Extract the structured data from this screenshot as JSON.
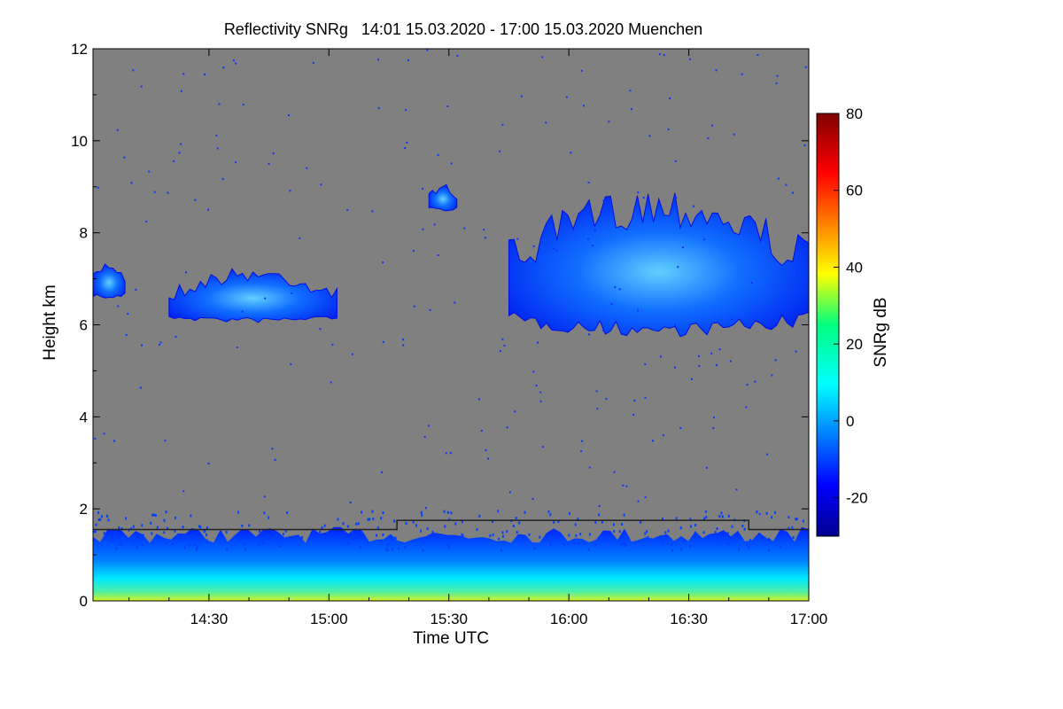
{
  "chart_data": {
    "type": "heatmap",
    "title": "Reflectivity SNRg   14:01 15.03.2020 - 17:00 15.03.2020 Muenchen",
    "xlabel": "Time UTC",
    "ylabel": "Height km",
    "x_ticks": [
      "14:30",
      "15:00",
      "15:30",
      "16:00",
      "16:30",
      "17:00"
    ],
    "x_tick_minutes": [
      870,
      900,
      930,
      960,
      990,
      1020
    ],
    "xlim_minutes": [
      841,
      1020
    ],
    "y_ticks": [
      0,
      2,
      4,
      6,
      8,
      10,
      12
    ],
    "ylim": [
      0,
      12
    ],
    "background_color": "#808080",
    "colorbar": {
      "label": "SNRg dB",
      "range": [
        -30,
        80
      ],
      "ticks": [
        -20,
        0,
        20,
        40,
        60,
        80
      ],
      "colormap": "jet"
    },
    "cloud_regions": [
      {
        "start": "14:01",
        "end": "14:09",
        "base_km": 6.6,
        "top_km": 7.3,
        "snr_db": -18
      },
      {
        "start": "14:20",
        "end": "15:02",
        "base_km": 6.1,
        "top_km": 7.1,
        "snr_db": -12
      },
      {
        "start": "15:25",
        "end": "15:32",
        "base_km": 8.5,
        "top_km": 9.0,
        "snr_db": -22
      },
      {
        "start": "15:45",
        "end": "17:00",
        "base_km": 5.9,
        "top_km": 8.6,
        "snr_db": -8
      }
    ],
    "boundary_layer": {
      "base_km": 0.0,
      "top_km": 1.5,
      "max_snr_db": 35
    },
    "boundary_line_km": [
      {
        "time": "14:01",
        "height": 1.55
      },
      {
        "time": "15:17",
        "height": 1.55
      },
      {
        "time": "15:17",
        "height": 1.75
      },
      {
        "time": "16:45",
        "height": 1.75
      },
      {
        "time": "16:45",
        "height": 1.55
      },
      {
        "time": "17:00",
        "height": 1.55
      }
    ]
  }
}
